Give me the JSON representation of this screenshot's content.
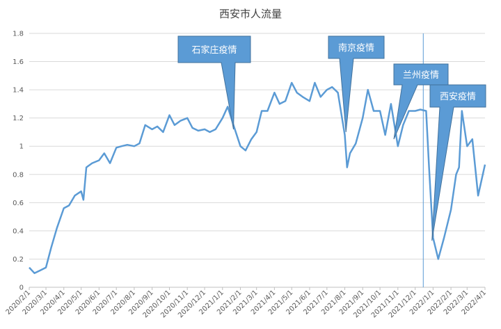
{
  "chart_data": {
    "type": "line",
    "title": "西安市人流量",
    "xlabel": "",
    "ylabel": "",
    "ylim": [
      0,
      1.8
    ],
    "yticks": [
      "0",
      "0.2",
      "0.4",
      "0.6",
      "0.8",
      "1",
      "1.2",
      "1.4",
      "1.6",
      "1.8"
    ],
    "xticks": [
      "2020/2/1",
      "2020/3/1",
      "2020/4/1",
      "2020/5/1",
      "2020/6/1",
      "2020/7/1",
      "2020/8/1",
      "2020/9/1",
      "2020/10/1",
      "2020/11/1",
      "2020/12/1",
      "2021/1/1",
      "2021/2/1",
      "2021/3/1",
      "2021/4/1",
      "2021/5/1",
      "2021/6/1",
      "2021/7/1",
      "2021/8/1",
      "2021/9/1",
      "2021/10/1",
      "2021/11/1",
      "2021/12/1",
      "2022/1/1",
      "2022/2/1",
      "2022/3/1",
      "2022/4/1"
    ],
    "grid": true,
    "legend": "none",
    "line_color": "#5b9bd5",
    "vline_x": "2021/12/15",
    "series": [
      {
        "x": [
          "2020/2/1",
          "2020/2/10",
          "2020/2/20",
          "2020/3/1",
          "2020/3/10",
          "2020/3/20",
          "2020/4/1",
          "2020/4/10",
          "2020/4/20",
          "2020/5/1",
          "2020/5/5",
          "2020/5/10",
          "2020/5/20",
          "2020/6/1",
          "2020/6/10",
          "2020/6/20",
          "2020/7/1",
          "2020/7/10",
          "2020/7/20",
          "2020/8/1",
          "2020/8/10",
          "2020/8/20",
          "2020/9/1",
          "2020/9/10",
          "2020/9/20",
          "2020/10/1",
          "2020/10/10",
          "2020/10/20",
          "2020/11/1",
          "2020/11/10",
          "2020/11/20",
          "2020/12/1",
          "2020/12/10",
          "2020/12/20",
          "2021/1/1",
          "2021/1/10",
          "2021/1/20",
          "2021/2/1",
          "2021/2/10",
          "2021/2/20",
          "2021/3/1",
          "2021/3/10",
          "2021/3/20",
          "2021/4/1",
          "2021/4/10",
          "2021/4/20",
          "2021/5/1",
          "2021/5/10",
          "2021/5/20",
          "2021/6/1",
          "2021/6/10",
          "2021/6/20",
          "2021/7/1",
          "2021/7/10",
          "2021/7/20",
          "2021/8/1",
          "2021/8/5",
          "2021/8/10",
          "2021/8/20",
          "2021/9/1",
          "2021/9/10",
          "2021/9/20",
          "2021/10/1",
          "2021/10/10",
          "2021/10/20",
          "2021/11/1",
          "2021/11/10",
          "2021/11/20",
          "2021/12/1",
          "2021/12/10",
          "2021/12/20",
          "2021/12/25",
          "2022/1/1",
          "2022/1/10",
          "2022/1/20",
          "2022/2/1",
          "2022/2/10",
          "2022/2/15",
          "2022/2/20",
          "2022/3/1",
          "2022/3/10",
          "2022/3/20",
          "2022/4/1"
        ],
        "values": [
          0.14,
          0.1,
          0.12,
          0.14,
          0.28,
          0.42,
          0.56,
          0.58,
          0.65,
          0.68,
          0.62,
          0.85,
          0.88,
          0.9,
          0.95,
          0.88,
          0.99,
          1.0,
          1.01,
          1.0,
          1.02,
          1.15,
          1.12,
          1.14,
          1.1,
          1.22,
          1.15,
          1.18,
          1.2,
          1.13,
          1.11,
          1.12,
          1.1,
          1.12,
          1.2,
          1.28,
          1.15,
          1.0,
          0.97,
          1.05,
          1.1,
          1.25,
          1.25,
          1.38,
          1.3,
          1.32,
          1.45,
          1.38,
          1.35,
          1.32,
          1.45,
          1.35,
          1.4,
          1.42,
          1.38,
          1.08,
          0.85,
          0.95,
          1.02,
          1.2,
          1.4,
          1.25,
          1.25,
          1.08,
          1.3,
          1.0,
          1.15,
          1.25,
          1.25,
          1.26,
          1.25,
          0.85,
          0.35,
          0.2,
          0.35,
          0.55,
          0.8,
          0.85,
          1.25,
          1.0,
          1.05,
          0.65,
          0.87
        ]
      }
    ],
    "annotations": [
      {
        "text": "石家庄疫情",
        "point_x": "2021/1/20",
        "point_y": 1.12
      },
      {
        "text": "南京疫情",
        "point_x": "2021/8/3",
        "point_y": 1.1
      },
      {
        "text": "兰州疫情",
        "point_x": "2021/10/25",
        "point_y": 1.05
      },
      {
        "text": "西安疫情",
        "point_x": "2021/12/30",
        "point_y": 0.33
      }
    ]
  }
}
